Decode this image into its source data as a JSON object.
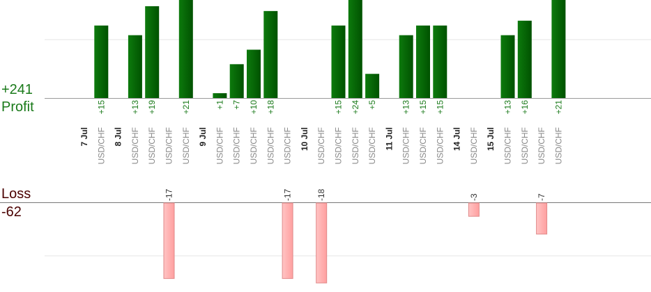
{
  "summary": {
    "profit_total": "+241",
    "profit_label": "Profit",
    "loss_label": "Loss",
    "loss_total": "-62"
  },
  "colors": {
    "gain_bar": "#0b6b0b",
    "gain_bar_dark": "#004a00",
    "loss_bar": "#ffb3b3",
    "loss_bar_edge": "#e08a8a",
    "gain_text": "#1a7a1a",
    "loss_text": "#4a0000"
  },
  "chart_data": {
    "type": "bar",
    "profit_axis_max": 21,
    "loss_axis_min": -18,
    "columns": [
      {
        "kind": "date",
        "label": "7 Jul"
      },
      {
        "kind": "trade",
        "label": "USD/CHF",
        "value": 15,
        "value_label": "+15"
      },
      {
        "kind": "date",
        "label": "8 Jul"
      },
      {
        "kind": "trade",
        "label": "USD/CHF",
        "value": 13,
        "value_label": "+13"
      },
      {
        "kind": "trade",
        "label": "USD/CHF",
        "value": 19,
        "value_label": "+19"
      },
      {
        "kind": "trade",
        "label": "USD/CHF",
        "value": -17,
        "value_label": "-17"
      },
      {
        "kind": "trade",
        "label": "USD/CHF",
        "value": 21,
        "value_label": "+21"
      },
      {
        "kind": "date",
        "label": "9 Jul"
      },
      {
        "kind": "trade",
        "label": "USD/CHF",
        "value": 1,
        "value_label": "+1"
      },
      {
        "kind": "trade",
        "label": "USD/CHF",
        "value": 7,
        "value_label": "+7"
      },
      {
        "kind": "trade",
        "label": "USD/CHF",
        "value": 10,
        "value_label": "+10"
      },
      {
        "kind": "trade",
        "label": "USD/CHF",
        "value": 18,
        "value_label": "+18"
      },
      {
        "kind": "trade",
        "label": "USD/CHF",
        "value": -17,
        "value_label": "-17"
      },
      {
        "kind": "date",
        "label": "10 Jul"
      },
      {
        "kind": "trade",
        "label": "USD/CHF",
        "value": -18,
        "value_label": "-18"
      },
      {
        "kind": "trade",
        "label": "USD/CHF",
        "value": 15,
        "value_label": "+15"
      },
      {
        "kind": "trade",
        "label": "USD/CHF",
        "value": 24,
        "value_label": "+24"
      },
      {
        "kind": "trade",
        "label": "USD/CHF",
        "value": 5,
        "value_label": "+5"
      },
      {
        "kind": "date",
        "label": "11 Jul"
      },
      {
        "kind": "trade",
        "label": "USD/CHF",
        "value": 13,
        "value_label": "+13"
      },
      {
        "kind": "trade",
        "label": "USD/CHF",
        "value": 15,
        "value_label": "+15"
      },
      {
        "kind": "trade",
        "label": "USD/CHF",
        "value": 15,
        "value_label": "+15"
      },
      {
        "kind": "date",
        "label": "14 Jul"
      },
      {
        "kind": "trade",
        "label": "USD/CHF",
        "value": -3,
        "value_label": "-3"
      },
      {
        "kind": "date",
        "label": "15 Jul"
      },
      {
        "kind": "trade",
        "label": "USD/CHF",
        "value": 13,
        "value_label": "+13"
      },
      {
        "kind": "trade",
        "label": "USD/CHF",
        "value": 16,
        "value_label": "+16"
      },
      {
        "kind": "trade",
        "label": "USD/CHF",
        "value": -7,
        "value_label": "-7"
      },
      {
        "kind": "trade",
        "label": "USD/CHF",
        "value": 21,
        "value_label": "+21"
      }
    ]
  }
}
